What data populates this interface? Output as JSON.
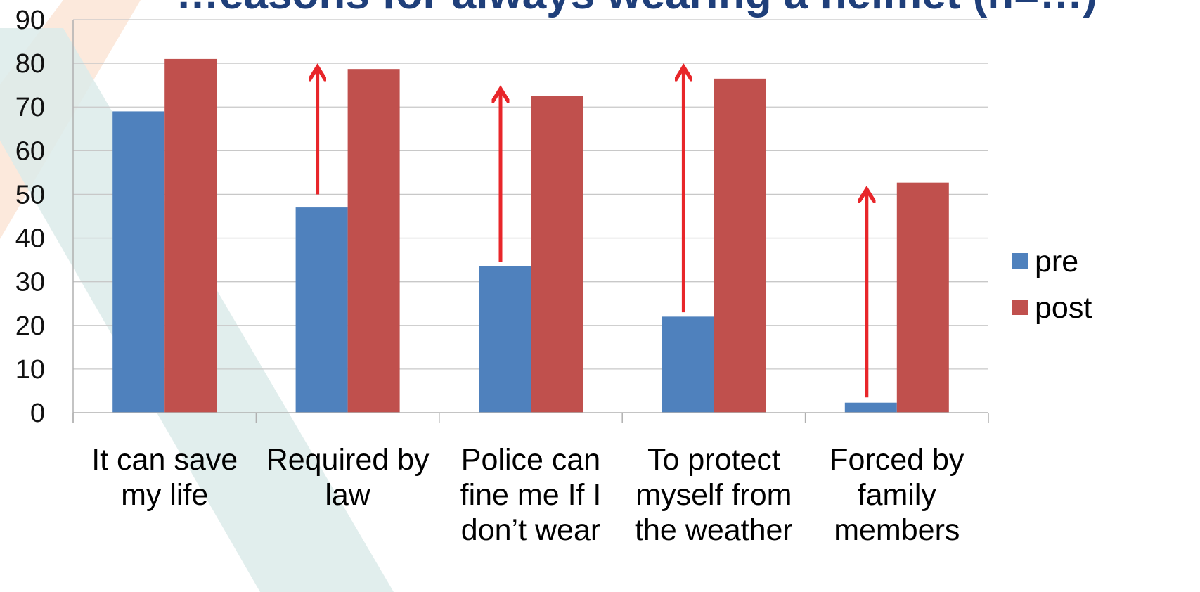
{
  "chart_data": {
    "type": "bar",
    "title": "…easons for always wearing a helmet (n=…)",
    "xlabel": "",
    "ylabel": "",
    "ylim": [
      0,
      90
    ],
    "yticks": [
      0,
      10,
      20,
      30,
      40,
      50,
      60,
      70,
      80,
      90
    ],
    "grid": true,
    "legend_position": "right",
    "categories": [
      [
        "It can save",
        "my life"
      ],
      [
        "Required by",
        "law"
      ],
      [
        "Police can",
        "fine me If I",
        "don’t wear"
      ],
      [
        "To protect",
        "myself from",
        "the weather"
      ],
      [
        "Forced by",
        "family",
        "members"
      ]
    ],
    "series": [
      {
        "name": "pre",
        "color": "#4f81bd",
        "values": [
          69,
          47,
          33.5,
          22,
          2.3
        ]
      },
      {
        "name": "post",
        "color": "#c0504d",
        "values": [
          81,
          78.7,
          72.5,
          76.5,
          52.7
        ]
      }
    ],
    "annotations": {
      "type": "arrows",
      "color": "#e8262a",
      "arrows": [
        {
          "category_index": 1,
          "from": 50,
          "to": 79
        },
        {
          "category_index": 2,
          "from": 34.5,
          "to": 74
        },
        {
          "category_index": 3,
          "from": 23,
          "to": 79
        },
        {
          "category_index": 4,
          "from": 3.5,
          "to": 51
        }
      ]
    }
  }
}
